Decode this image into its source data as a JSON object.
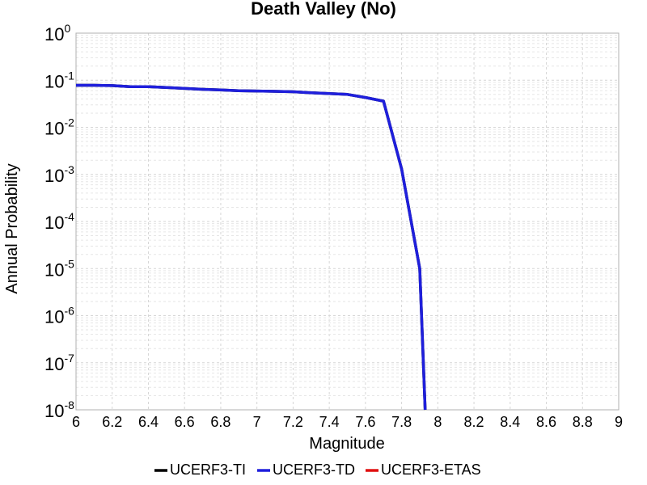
{
  "chart_data": {
    "type": "line",
    "title": "Death Valley (No)",
    "xlabel": "Magnitude",
    "ylabel": "Annual Probability",
    "xlim": [
      6,
      9
    ],
    "ylim": [
      1e-08,
      1
    ],
    "yscale": "log",
    "grid": true,
    "legend_position": "bottom",
    "x_ticks": [
      "6",
      "6.2",
      "6.4",
      "6.6",
      "6.8",
      "7",
      "7.2",
      "7.4",
      "7.6",
      "7.8",
      "8",
      "8.2",
      "8.4",
      "8.6",
      "8.8",
      "9"
    ],
    "y_ticks": [
      {
        "base": "10",
        "exp": "-8"
      },
      {
        "base": "10",
        "exp": "-7"
      },
      {
        "base": "10",
        "exp": "-6"
      },
      {
        "base": "10",
        "exp": "-5"
      },
      {
        "base": "10",
        "exp": "-4"
      },
      {
        "base": "10",
        "exp": "-3"
      },
      {
        "base": "10",
        "exp": "-2"
      },
      {
        "base": "10",
        "exp": "-1"
      },
      {
        "base": "10",
        "exp": "0"
      }
    ],
    "series": [
      {
        "name": "UCERF3-TI",
        "color": "#000000",
        "x": [
          6.0,
          6.1,
          6.2,
          6.3,
          6.4,
          6.5,
          6.6,
          6.7,
          6.8,
          6.9,
          7.0,
          7.1,
          7.2,
          7.3,
          7.4,
          7.5,
          7.6,
          7.7,
          7.8,
          7.9,
          7.93
        ],
        "y": [
          0.078,
          0.078,
          0.077,
          0.073,
          0.073,
          0.07,
          0.067,
          0.064,
          0.062,
          0.06,
          0.059,
          0.058,
          0.057,
          0.054,
          0.052,
          0.05,
          0.043,
          0.036,
          0.0013,
          1e-05,
          1e-08
        ]
      },
      {
        "name": "UCERF3-TD",
        "color": "#1f1fdc",
        "x": [
          6.0,
          6.1,
          6.2,
          6.3,
          6.4,
          6.5,
          6.6,
          6.7,
          6.8,
          6.9,
          7.0,
          7.1,
          7.2,
          7.3,
          7.4,
          7.5,
          7.6,
          7.7,
          7.8,
          7.9,
          7.93
        ],
        "y": [
          0.078,
          0.078,
          0.077,
          0.073,
          0.073,
          0.07,
          0.067,
          0.064,
          0.062,
          0.06,
          0.059,
          0.058,
          0.057,
          0.054,
          0.052,
          0.05,
          0.043,
          0.036,
          0.0013,
          1e-05,
          1e-08
        ]
      },
      {
        "name": "UCERF3-ETAS",
        "color": "#e01010",
        "x": [],
        "y": []
      }
    ]
  }
}
